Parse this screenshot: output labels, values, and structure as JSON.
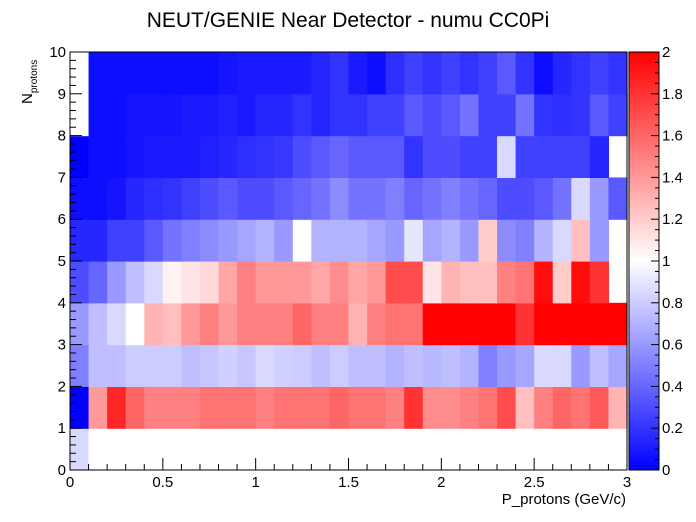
{
  "chart_data": {
    "type": "heatmap",
    "title": "NEUT/GENIE Near Detector - numu CC0Pi",
    "xlabel": "P_protons (GeV/c)",
    "ylabel": "N",
    "ylabel_subscript": "protons",
    "xlim": [
      0,
      3
    ],
    "ylim": [
      0,
      10
    ],
    "zlim": [
      0,
      2
    ],
    "x_bin_width": 0.1,
    "y_bin_width": 1,
    "x_ticks": [
      "0",
      "0.5",
      "1",
      "1.5",
      "2",
      "2.5",
      "3"
    ],
    "y_ticks": [
      "0",
      "1",
      "2",
      "3",
      "4",
      "5",
      "6",
      "7",
      "8",
      "9",
      "10"
    ],
    "z_ticks": [
      "0",
      "0.2",
      "0.4",
      "0.6",
      "0.8",
      "1",
      "1.2",
      "1.4",
      "1.6",
      "1.8",
      "2"
    ],
    "grid": false,
    "colormap": {
      "low": "#0000ff",
      "mid": "#ffffff",
      "high": "#ff0000"
    },
    "values_by_row_from_y0": [
      [
        0.85,
        1,
        1,
        1,
        1,
        1,
        1,
        1,
        1,
        1,
        1,
        1,
        1,
        1,
        1,
        1,
        1,
        1,
        1,
        1,
        1,
        1,
        1,
        1,
        1,
        1,
        1,
        1,
        1,
        1
      ],
      [
        0.0,
        1.4,
        1.85,
        1.6,
        1.5,
        1.5,
        1.5,
        1.55,
        1.55,
        1.55,
        1.5,
        1.55,
        1.55,
        1.55,
        1.6,
        1.55,
        1.55,
        1.5,
        1.8,
        1.45,
        1.45,
        1.5,
        1.55,
        1.7,
        1.25,
        1.5,
        1.6,
        1.55,
        1.65,
        1.3,
        1.6
      ],
      [
        0.5,
        0.75,
        0.75,
        0.8,
        0.8,
        0.8,
        0.75,
        0.78,
        0.82,
        0.78,
        0.85,
        0.82,
        0.8,
        0.75,
        0.8,
        0.75,
        0.75,
        0.7,
        0.75,
        0.72,
        0.75,
        0.7,
        0.5,
        0.6,
        0.65,
        0.85,
        0.85,
        0.6,
        0.75,
        0.65,
        0.9
      ],
      [
        0.6,
        0.75,
        0.85,
        1.0,
        1.3,
        1.25,
        1.4,
        1.5,
        1.4,
        1.5,
        1.5,
        1.5,
        1.6,
        1.5,
        1.5,
        1.3,
        1.5,
        1.55,
        1.55,
        2.0,
        2.0,
        2.0,
        2.0,
        2.0,
        1.8,
        2.0,
        2.0,
        2.0,
        2.0,
        2.0
      ],
      [
        0.3,
        0.4,
        0.6,
        0.75,
        0.85,
        1.05,
        1.1,
        1.15,
        1.35,
        1.5,
        1.4,
        1.4,
        1.4,
        1.35,
        1.45,
        1.35,
        1.4,
        1.7,
        1.7,
        1.1,
        1.3,
        1.25,
        1.25,
        1.5,
        1.55,
        1.95,
        1.2,
        1.95,
        1.8
      ],
      [
        0.15,
        0.15,
        0.25,
        0.25,
        0.35,
        0.45,
        0.5,
        0.55,
        0.6,
        0.65,
        0.7,
        0.6,
        1.0,
        0.7,
        0.7,
        0.7,
        0.65,
        0.6,
        0.9,
        0.65,
        0.7,
        0.6,
        1.2,
        0.55,
        0.5,
        0.7,
        0.85,
        1.25,
        0.6
      ],
      [
        0.05,
        0.05,
        0.08,
        0.15,
        0.18,
        0.2,
        0.25,
        0.3,
        0.35,
        0.3,
        0.3,
        0.35,
        0.4,
        0.45,
        0.55,
        0.45,
        0.45,
        0.5,
        0.4,
        0.45,
        0.5,
        0.45,
        0.4,
        0.3,
        0.3,
        0.35,
        0.45,
        0.85,
        0.6,
        0.35
      ],
      [
        0.0,
        0.05,
        0.05,
        0.08,
        0.1,
        0.1,
        0.1,
        0.12,
        0.15,
        0.18,
        0.2,
        0.22,
        0.3,
        0.35,
        0.4,
        0.35,
        0.35,
        0.35,
        0.2,
        0.3,
        0.3,
        0.25,
        0.25,
        0.85,
        0.25,
        0.25,
        0.25,
        0.25,
        0.15
      ],
      [
        1,
        0.05,
        0.05,
        0.08,
        0.08,
        0.08,
        0.1,
        0.1,
        0.12,
        0.1,
        0.15,
        0.15,
        0.2,
        0.15,
        0.2,
        0.2,
        0.25,
        0.25,
        0.35,
        0.3,
        0.35,
        0.45,
        0.25,
        0.25,
        0.45,
        0.2,
        0.18,
        0.2,
        0.35,
        0.25,
        0.0
      ],
      [
        1,
        0.05,
        0.05,
        0.05,
        0.05,
        0.05,
        0.05,
        0.05,
        0.08,
        0.1,
        0.1,
        0.1,
        0.1,
        0.15,
        0.2,
        0.1,
        0.05,
        0.18,
        0.25,
        0.2,
        0.25,
        0.2,
        0.25,
        0.35,
        0.2,
        0.05,
        0.15,
        0.2,
        0.25,
        0.2
      ]
    ]
  }
}
